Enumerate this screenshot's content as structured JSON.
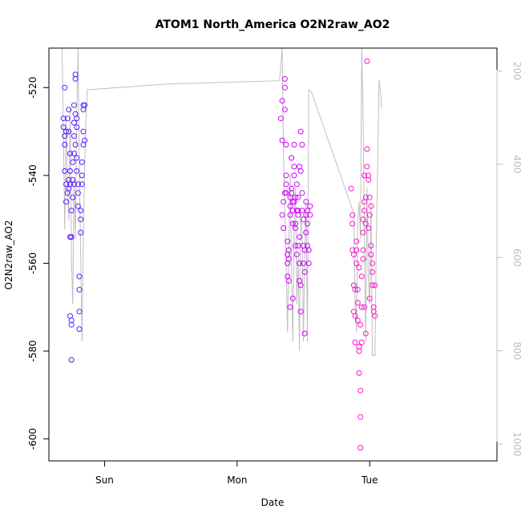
{
  "chart_data": {
    "type": "scatter",
    "title": "ATOM1 North_America O2N2raw_AO2",
    "xlabel": "Date",
    "ylabel": "O2N2raw_AO2",
    "x_ticks": [
      {
        "day": 1.0,
        "label": "Sun"
      },
      {
        "day": 2.0,
        "label": "Mon"
      },
      {
        "day": 3.0,
        "label": "Tue"
      }
    ],
    "xlim": [
      0.58,
      3.96
    ],
    "ylim": [
      -605,
      -511
    ],
    "y_ticks": [
      -600,
      -580,
      -560,
      -540,
      -520
    ],
    "y2_ticks": [
      200,
      400,
      600,
      800,
      1000
    ],
    "y2lim": [
      1036,
      151
    ],
    "grid": false,
    "colors": {
      "early": "#5b1aff",
      "mid": "#d400ff",
      "late": "#ff14d0",
      "line": "#bfbfbf",
      "axis": "#000000",
      "right_axis": "#bdbdbd"
    },
    "line_series": {
      "name": "",
      "points": [
        [
          0.68,
          150
        ],
        [
          0.69,
          350
        ],
        [
          0.7,
          540
        ],
        [
          0.71,
          300
        ],
        [
          0.72,
          450
        ],
        [
          0.73,
          520
        ],
        [
          0.74,
          280
        ],
        [
          0.75,
          600
        ],
        [
          0.76,
          700
        ],
        [
          0.77,
          430
        ],
        [
          0.78,
          560
        ],
        [
          0.79,
          300
        ],
        [
          0.8,
          150
        ],
        [
          0.81,
          420
        ],
        [
          0.82,
          600
        ],
        [
          0.83,
          780
        ],
        [
          0.84,
          560
        ],
        [
          0.85,
          400
        ],
        [
          0.86,
          300
        ],
        [
          0.87,
          240
        ],
        [
          0.89,
          240
        ],
        [
          1.48,
          228
        ],
        [
          2.32,
          221
        ],
        [
          2.34,
          150
        ],
        [
          2.35,
          380
        ],
        [
          2.36,
          500
        ],
        [
          2.37,
          620
        ],
        [
          2.38,
          760
        ],
        [
          2.39,
          580
        ],
        [
          2.4,
          420
        ],
        [
          2.41,
          640
        ],
        [
          2.42,
          780
        ],
        [
          2.43,
          520
        ],
        [
          2.44,
          450
        ],
        [
          2.45,
          700
        ],
        [
          2.46,
          600
        ],
        [
          2.47,
          800
        ],
        [
          2.48,
          500
        ],
        [
          2.49,
          540
        ],
        [
          2.5,
          780
        ],
        [
          2.51,
          600
        ],
        [
          2.52,
          480
        ],
        [
          2.53,
          780
        ],
        [
          2.54,
          240
        ],
        [
          2.56,
          245
        ],
        [
          2.88,
          505
        ],
        [
          2.89,
          700
        ],
        [
          2.9,
          760
        ],
        [
          2.91,
          520
        ],
        [
          2.92,
          480
        ],
        [
          2.93,
          560
        ],
        [
          2.94,
          150
        ],
        [
          2.95,
          300
        ],
        [
          2.96,
          560
        ],
        [
          2.97,
          780
        ],
        [
          2.98,
          450
        ],
        [
          2.99,
          650
        ],
        [
          3.0,
          700
        ],
        [
          3.01,
          480
        ],
        [
          3.02,
          810
        ],
        [
          3.04,
          810
        ],
        [
          3.05,
          560
        ],
        [
          3.06,
          400
        ],
        [
          3.07,
          220
        ],
        [
          3.08,
          240
        ],
        [
          3.09,
          280
        ]
      ]
    },
    "series": [
      {
        "name": "",
        "color_key": "early",
        "points": [
          [
            0.69,
            -527
          ],
          [
            0.69,
            -529
          ],
          [
            0.7,
            -531
          ],
          [
            0.7,
            -520
          ],
          [
            0.7,
            -533
          ],
          [
            0.7,
            -539
          ],
          [
            0.71,
            -542
          ],
          [
            0.71,
            -546
          ],
          [
            0.71,
            -530
          ],
          [
            0.72,
            -544
          ],
          [
            0.72,
            -527
          ],
          [
            0.73,
            -543
          ],
          [
            0.73,
            -541
          ],
          [
            0.73,
            -525
          ],
          [
            0.73,
            -530
          ],
          [
            0.74,
            -535
          ],
          [
            0.74,
            -542
          ],
          [
            0.74,
            -539
          ],
          [
            0.74,
            -554
          ],
          [
            0.74,
            -572
          ],
          [
            0.75,
            -573
          ],
          [
            0.75,
            -554
          ],
          [
            0.75,
            -548
          ],
          [
            0.75,
            -582
          ],
          [
            0.75,
            -574
          ],
          [
            0.76,
            -545
          ],
          [
            0.76,
            -541
          ],
          [
            0.76,
            -537
          ],
          [
            0.77,
            -524
          ],
          [
            0.77,
            -528
          ],
          [
            0.77,
            -531
          ],
          [
            0.77,
            -535
          ],
          [
            0.77,
            -542
          ],
          [
            0.78,
            -526
          ],
          [
            0.78,
            -517
          ],
          [
            0.78,
            -518
          ],
          [
            0.78,
            -533
          ],
          [
            0.79,
            -527
          ],
          [
            0.79,
            -529
          ],
          [
            0.79,
            -536
          ],
          [
            0.79,
            -539
          ],
          [
            0.8,
            -542
          ],
          [
            0.8,
            -544
          ],
          [
            0.8,
            -547
          ],
          [
            0.81,
            -566
          ],
          [
            0.81,
            -571
          ],
          [
            0.81,
            -575
          ],
          [
            0.81,
            -563
          ],
          [
            0.82,
            -550
          ],
          [
            0.82,
            -553
          ],
          [
            0.82,
            -548
          ],
          [
            0.83,
            -537
          ],
          [
            0.83,
            -540
          ],
          [
            0.83,
            -542
          ],
          [
            0.84,
            -530
          ],
          [
            0.84,
            -525
          ],
          [
            0.84,
            -524
          ],
          [
            0.84,
            -533
          ],
          [
            0.85,
            -524
          ],
          [
            0.85,
            -532
          ]
        ]
      },
      {
        "name": "",
        "color_key": "mid",
        "points": [
          [
            2.33,
            -527
          ],
          [
            2.34,
            -523
          ],
          [
            2.34,
            -532
          ],
          [
            2.34,
            -549
          ],
          [
            2.35,
            -546
          ],
          [
            2.35,
            -552
          ],
          [
            2.36,
            -518
          ],
          [
            2.36,
            -520
          ],
          [
            2.36,
            -525
          ],
          [
            2.37,
            -533
          ],
          [
            2.37,
            -540
          ],
          [
            2.37,
            -542
          ],
          [
            2.37,
            -544
          ],
          [
            2.38,
            -555
          ],
          [
            2.38,
            -558
          ],
          [
            2.38,
            -560
          ],
          [
            2.38,
            -563
          ],
          [
            2.39,
            -564
          ],
          [
            2.39,
            -559
          ],
          [
            2.39,
            -557
          ],
          [
            2.4,
            -547
          ],
          [
            2.4,
            -549
          ],
          [
            2.4,
            -545
          ],
          [
            2.41,
            -543
          ],
          [
            2.41,
            -536
          ],
          [
            2.41,
            -544
          ],
          [
            2.42,
            -546
          ],
          [
            2.42,
            -551
          ],
          [
            2.42,
            -548
          ],
          [
            2.43,
            -538
          ],
          [
            2.43,
            -540
          ],
          [
            2.43,
            -546
          ],
          [
            2.44,
            -552
          ],
          [
            2.44,
            -556
          ],
          [
            2.44,
            -545
          ],
          [
            2.45,
            -542
          ],
          [
            2.45,
            -548
          ],
          [
            2.45,
            -558
          ],
          [
            2.46,
            -556
          ],
          [
            2.46,
            -549
          ],
          [
            2.46,
            -548
          ],
          [
            2.46,
            -545
          ],
          [
            2.47,
            -554
          ],
          [
            2.47,
            -560
          ],
          [
            2.47,
            -564
          ],
          [
            2.48,
            -571
          ],
          [
            2.48,
            -565
          ],
          [
            2.48,
            -539
          ],
          [
            2.48,
            -530
          ],
          [
            2.49,
            -533
          ],
          [
            2.49,
            -544
          ],
          [
            2.49,
            -548
          ],
          [
            2.5,
            -550
          ],
          [
            2.5,
            -556
          ],
          [
            2.5,
            -560
          ],
          [
            2.51,
            -576
          ],
          [
            2.51,
            -562
          ],
          [
            2.51,
            -557
          ],
          [
            2.52,
            -553
          ],
          [
            2.52,
            -549
          ],
          [
            2.52,
            -546
          ],
          [
            2.53,
            -548
          ],
          [
            2.53,
            -551
          ],
          [
            2.53,
            -556
          ],
          [
            2.54,
            -557
          ],
          [
            2.54,
            -560
          ],
          [
            2.55,
            -547
          ],
          [
            2.55,
            -549
          ],
          [
            2.4,
            -570
          ],
          [
            2.42,
            -568
          ],
          [
            2.36,
            -544
          ],
          [
            2.43,
            -533
          ],
          [
            2.47,
            -538
          ],
          [
            2.44,
            -551
          ]
        ]
      },
      {
        "name": "",
        "color_key": "late",
        "points": [
          [
            2.86,
            -543
          ],
          [
            2.87,
            -549
          ],
          [
            2.87,
            -551
          ],
          [
            2.87,
            -557
          ],
          [
            2.88,
            -558
          ],
          [
            2.88,
            -565
          ],
          [
            2.88,
            -571
          ],
          [
            2.89,
            -572
          ],
          [
            2.89,
            -578
          ],
          [
            2.89,
            -566
          ],
          [
            2.9,
            -555
          ],
          [
            2.9,
            -557
          ],
          [
            2.9,
            -560
          ],
          [
            2.91,
            -566
          ],
          [
            2.91,
            -569
          ],
          [
            2.91,
            -573
          ],
          [
            2.92,
            -579
          ],
          [
            2.92,
            -580
          ],
          [
            2.92,
            -585
          ],
          [
            2.93,
            -589
          ],
          [
            2.93,
            -595
          ],
          [
            2.93,
            -602
          ],
          [
            2.94,
            -578
          ],
          [
            2.94,
            -570
          ],
          [
            2.94,
            -563
          ],
          [
            2.95,
            -559
          ],
          [
            2.95,
            -557
          ],
          [
            2.95,
            -550
          ],
          [
            2.96,
            -546
          ],
          [
            2.96,
            -548
          ],
          [
            2.96,
            -540
          ],
          [
            2.97,
            -545
          ],
          [
            2.97,
            -551
          ],
          [
            2.98,
            -534
          ],
          [
            2.98,
            -538
          ],
          [
            2.98,
            -514
          ],
          [
            2.99,
            -541
          ],
          [
            2.99,
            -540
          ],
          [
            3.0,
            -545
          ],
          [
            3.0,
            -549
          ],
          [
            3.01,
            -556
          ],
          [
            3.01,
            -558
          ],
          [
            3.02,
            -560
          ],
          [
            3.02,
            -562
          ],
          [
            3.02,
            -565
          ],
          [
            3.03,
            -571
          ],
          [
            3.03,
            -570
          ],
          [
            3.04,
            -572
          ],
          [
            3.04,
            -565
          ],
          [
            3.0,
            -568
          ],
          [
            2.97,
            -576
          ],
          [
            2.96,
            -570
          ],
          [
            2.99,
            -552
          ],
          [
            3.01,
            -547
          ],
          [
            2.95,
            -553
          ],
          [
            2.92,
            -561
          ],
          [
            2.93,
            -574
          ]
        ]
      }
    ]
  }
}
